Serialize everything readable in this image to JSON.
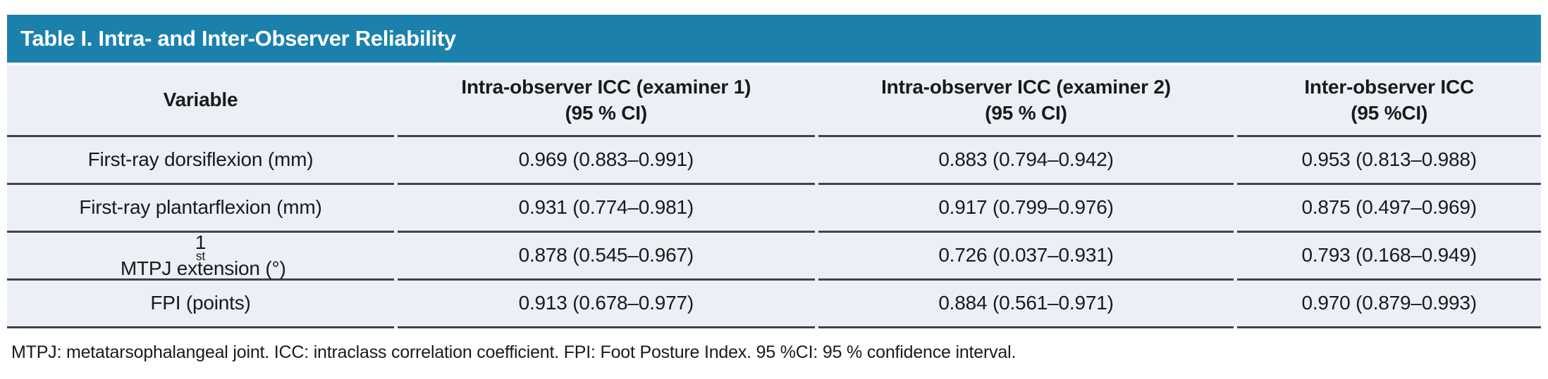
{
  "title": "Table I. Intra- and Inter-Observer Reliability",
  "colors": {
    "header_bg": "#1B81AC",
    "body_bg": "#ECEFF6",
    "rule": "#3F444A",
    "title_text": "#FFFFFF",
    "body_text": "#1A1A1A"
  },
  "table": {
    "columns": [
      {
        "line1": "Variable",
        "line2": ""
      },
      {
        "line1": "Intra-observer ICC (examiner 1)",
        "line2": "(95 % CI)"
      },
      {
        "line1": "Intra-observer ICC (examiner 2)",
        "line2": "(95 % CI)"
      },
      {
        "line1": "Inter-observer ICC",
        "line2": "(95 %CI)"
      }
    ],
    "rows": [
      {
        "variable": {
          "pre": "First-ray dorsiflexion (mm)",
          "sup": "",
          "post": ""
        },
        "values": [
          "0.969 (0.883–0.991)",
          "0.883 (0.794–0.942)",
          "0.953 (0.813–0.988)"
        ]
      },
      {
        "variable": {
          "pre": "First-ray plantarflexion (mm)",
          "sup": "",
          "post": ""
        },
        "values": [
          "0.931 (0.774–0.981)",
          "0.917 (0.799–0.976)",
          "0.875 (0.497–0.969)"
        ]
      },
      {
        "variable": {
          "pre": "1",
          "sup": "st",
          "post": " MTPJ extension (°)"
        },
        "values": [
          "0.878 (0.545–0.967)",
          "0.726 (0.037–0.931)",
          "0.793 (0.168–0.949)"
        ]
      },
      {
        "variable": {
          "pre": "FPI (points)",
          "sup": "",
          "post": ""
        },
        "values": [
          "0.913 (0.678–0.977)",
          "0.884 (0.561–0.971)",
          "0.970 (0.879–0.993)"
        ]
      }
    ]
  },
  "footnote": "MTPJ: metatarsophalangeal joint. ICC: intraclass correlation coefficient. FPI: Foot Posture Index. 95 %CI: 95 % confidence interval."
}
